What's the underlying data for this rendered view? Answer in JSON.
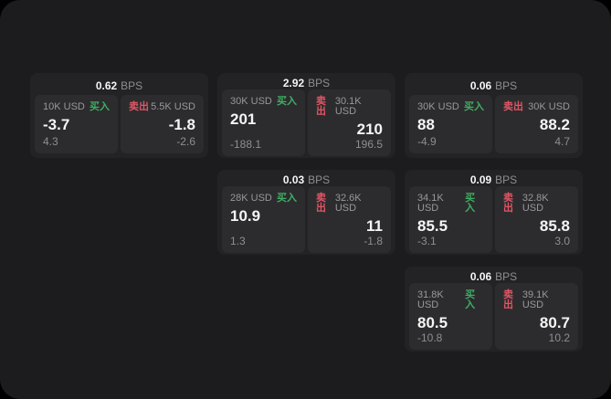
{
  "labels": {
    "bps_unit": "BPS",
    "buy": "买入",
    "sell": "卖出"
  },
  "colors": {
    "screen_bg": "#1c1c1e",
    "card_bg": "#232325",
    "panel_bg": "#2c2c2e",
    "buy_green": "#3fae63",
    "sell_red": "#e25565",
    "text_primary": "#f5f5f5",
    "text_muted": "#8e8e93"
  },
  "cards": [
    {
      "bps": "0.62",
      "buy": {
        "amount": "10K USD",
        "price": "-3.7",
        "delta": "4.3"
      },
      "sell": {
        "amount": "5.5K USD",
        "price": "-1.8",
        "delta": "-2.6"
      }
    },
    {
      "bps": "2.92",
      "buy": {
        "amount": "30K USD",
        "price": "201",
        "delta": "-188.1"
      },
      "sell": {
        "amount": "30.1K USD",
        "price": "210",
        "delta": "196.5"
      }
    },
    {
      "bps": "0.06",
      "buy": {
        "amount": "30K USD",
        "price": "88",
        "delta": "-4.9"
      },
      "sell": {
        "amount": "30K USD",
        "price": "88.2",
        "delta": "4.7"
      }
    },
    {
      "bps": "0.03",
      "buy": {
        "amount": "28K USD",
        "price": "10.9",
        "delta": "1.3"
      },
      "sell": {
        "amount": "32.6K USD",
        "price": "11",
        "delta": "-1.8"
      }
    },
    {
      "bps": "0.09",
      "buy": {
        "amount": "34.1K USD",
        "price": "85.5",
        "delta": "-3.1"
      },
      "sell": {
        "amount": "32.8K USD",
        "price": "85.8",
        "delta": "3.0"
      }
    },
    {
      "bps": "0.06",
      "buy": {
        "amount": "31.8K USD",
        "price": "80.5",
        "delta": "-10.8"
      },
      "sell": {
        "amount": "39.1K USD",
        "price": "80.7",
        "delta": "10.2"
      }
    }
  ]
}
